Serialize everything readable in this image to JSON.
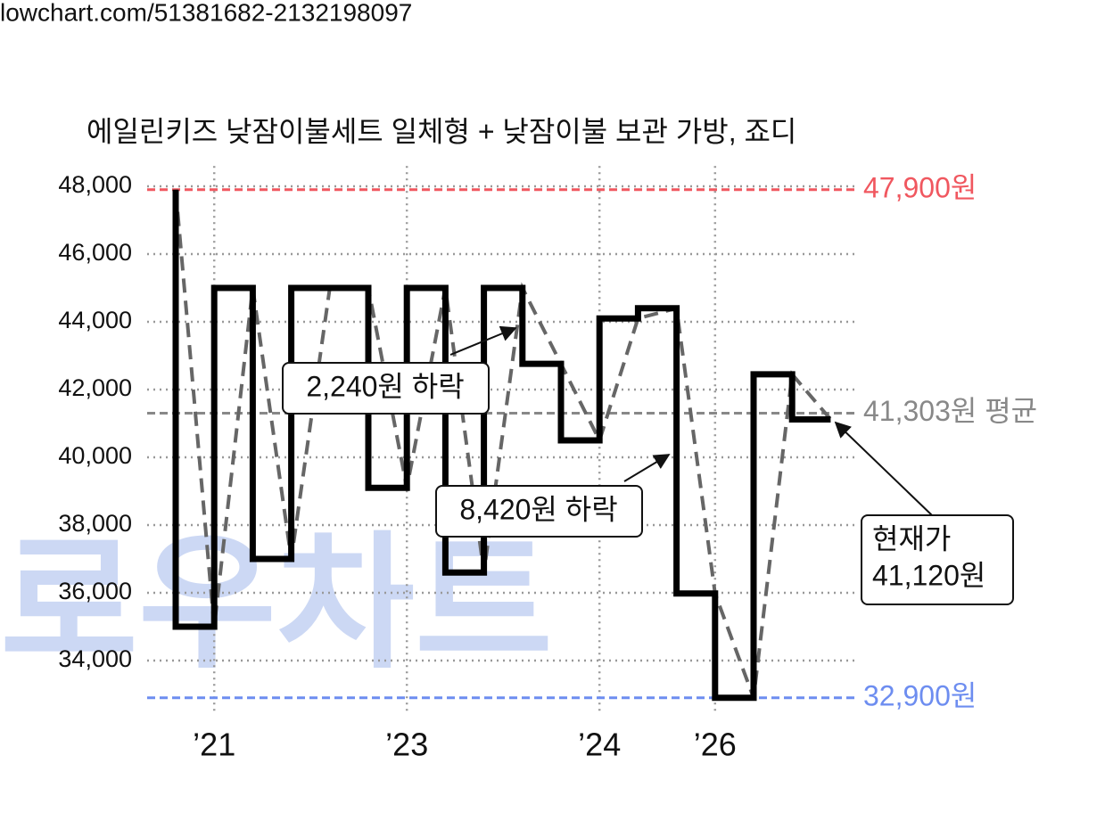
{
  "header": {
    "url": "lowchart.com/51381682-2132198097"
  },
  "watermark": "로우차트",
  "chart_data": {
    "type": "line",
    "title": "에일린키즈 낮잠이불세트 일체형 + 낮잠이불 보관 가방, 죠디",
    "step": true,
    "connector_color": "#666666",
    "categories": [
      null,
      "’21",
      null,
      null,
      null,
      null,
      "’23",
      null,
      null,
      null,
      null,
      "’24",
      null,
      null,
      "’26",
      null,
      null,
      null
    ],
    "series": [
      {
        "color": "#000000",
        "values": [
          47900,
          35000,
          45000,
          37000,
          45000,
          45000,
          39100,
          45000,
          36600,
          45000,
          42760,
          40500,
          44100,
          44400,
          35980,
          32900,
          42450,
          41120
        ]
      }
    ],
    "ylim": [
      32400,
      48600
    ],
    "yticks": [
      {
        "value": 34000,
        "label": "34,000"
      },
      {
        "value": 36000,
        "label": "36,000"
      },
      {
        "value": 38000,
        "label": "38,000"
      },
      {
        "value": 40000,
        "label": "40,000"
      },
      {
        "value": 42000,
        "label": "42,000"
      },
      {
        "value": 44000,
        "label": "44,000"
      },
      {
        "value": 46000,
        "label": "46,000"
      },
      {
        "value": 48000,
        "label": "48,000"
      }
    ],
    "grid": true,
    "reference_lines": [
      {
        "value": 47900,
        "label": "47,900원",
        "color": "#f0575f"
      },
      {
        "value": 41303,
        "label": "41,303원 평균",
        "color": "#888888"
      },
      {
        "value": 32900,
        "label": "32,900원",
        "color": "#6d8df0"
      }
    ],
    "annotations": [
      {
        "text": "2,240원 하락"
      },
      {
        "text": "8,420원 하락"
      },
      {
        "lines": [
          "현재가",
          "41,120원"
        ]
      }
    ]
  }
}
